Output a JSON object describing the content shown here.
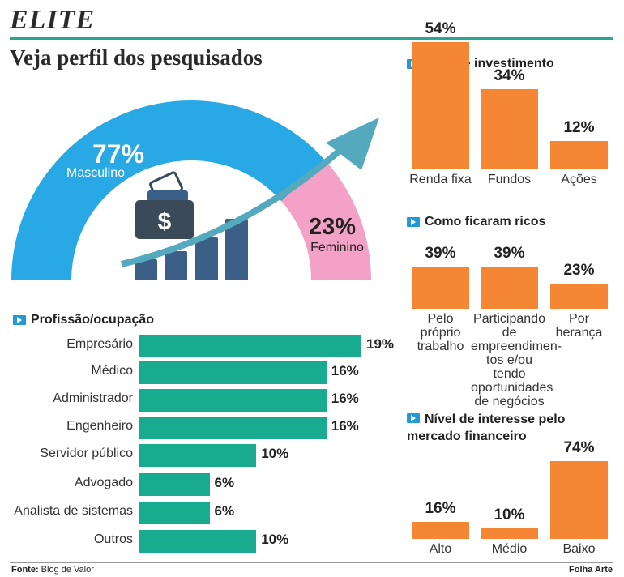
{
  "header": {
    "brand": "ELITE",
    "headline": "Veja perfil dos pesquisados"
  },
  "colors": {
    "male": "#28a9e6",
    "female": "#f3a1c6",
    "orange": "#f58634",
    "teal": "#19ab8f",
    "arrow": "#55a9bf",
    "bars": "#3b5f86"
  },
  "icons": [
    "money-bag-icon",
    "growth-arrow-icon",
    "section-arrow-icon"
  ],
  "footer": {
    "source_label": "Fonte:",
    "source": "Blog de Valor",
    "credit": "Folha Arte"
  },
  "chart_data": [
    {
      "type": "pie",
      "title": "",
      "slices": [
        {
          "name": "Masculino",
          "value": 77,
          "label": "77%"
        },
        {
          "name": "Feminino",
          "value": 23,
          "label": "23%"
        }
      ]
    },
    {
      "type": "bar",
      "title": "Tipo de investimento",
      "categories": [
        "Renda fixa",
        "Fundos",
        "Ações"
      ],
      "values": [
        54,
        34,
        12
      ],
      "labels": [
        "54%",
        "34%",
        "12%"
      ]
    },
    {
      "type": "bar",
      "title": "Como ficaram ricos",
      "categories": [
        "Pelo próprio trabalho",
        "Participando de empreendimen-tos e/ou tendo oportunidades de negócios",
        "Por herança"
      ],
      "category_lines": [
        [
          "Pelo",
          "próprio",
          "trabalho"
        ],
        [
          "Participando de",
          "empreendimen-",
          "tos e/ou tendo",
          "oportunidades",
          "de negócios"
        ],
        [
          "Por",
          "herança"
        ]
      ],
      "values": [
        39,
        39,
        23
      ],
      "labels": [
        "39%",
        "39%",
        "23%"
      ]
    },
    {
      "type": "bar",
      "title": "Nível de interesse pelo mercado financeiro",
      "title_lines": [
        "Nível de interesse pelo",
        "mercado financeiro"
      ],
      "categories": [
        "Alto",
        "Médio",
        "Baixo"
      ],
      "values": [
        16,
        10,
        74
      ],
      "labels": [
        "16%",
        "10%",
        "74%"
      ]
    },
    {
      "type": "bar",
      "orientation": "horizontal",
      "title": "Profissão/ocupação",
      "categories": [
        "Empresário",
        "Médico",
        "Administrador",
        "Engenheiro",
        "Servidor público",
        "Advogado",
        "Analista de sistemas",
        "Outros"
      ],
      "values": [
        19,
        16,
        16,
        16,
        10,
        6,
        6,
        10
      ],
      "labels": [
        "19%",
        "16%",
        "16%",
        "16%",
        "10%",
        "6%",
        "6%",
        "10%"
      ]
    }
  ]
}
